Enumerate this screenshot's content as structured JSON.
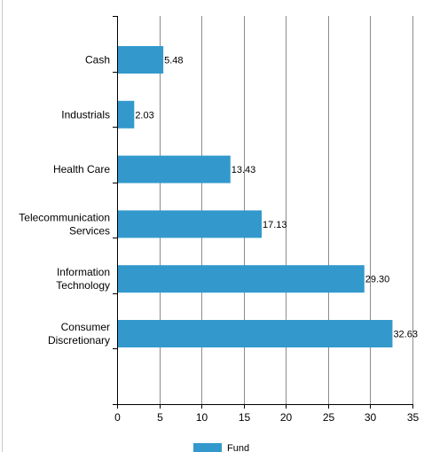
{
  "chart_data": {
    "type": "bar",
    "orientation": "horizontal",
    "categories": [
      "Cash",
      "Industrials",
      "Health Care",
      "Telecommunication Services",
      "Information Technology",
      "Consumer Discretionary"
    ],
    "category_lines": [
      [
        "Cash"
      ],
      [
        "Industrials"
      ],
      [
        "Health Care"
      ],
      [
        "Telecommunication",
        "Services"
      ],
      [
        "Information",
        "Technology"
      ],
      [
        "Consumer",
        "Discretionary"
      ]
    ],
    "series": [
      {
        "name": "Fund",
        "values": [
          5.48,
          2.03,
          13.43,
          17.13,
          29.3,
          32.63
        ],
        "labels": [
          "5.48",
          "2.03",
          "13.43",
          "17.13",
          "29.30",
          "32.63"
        ],
        "color": "#3399cc"
      }
    ],
    "xlim": [
      0,
      35
    ],
    "xticks": [
      0,
      5,
      10,
      15,
      20,
      25,
      30,
      35
    ],
    "grid": true,
    "legend": "bottom"
  }
}
